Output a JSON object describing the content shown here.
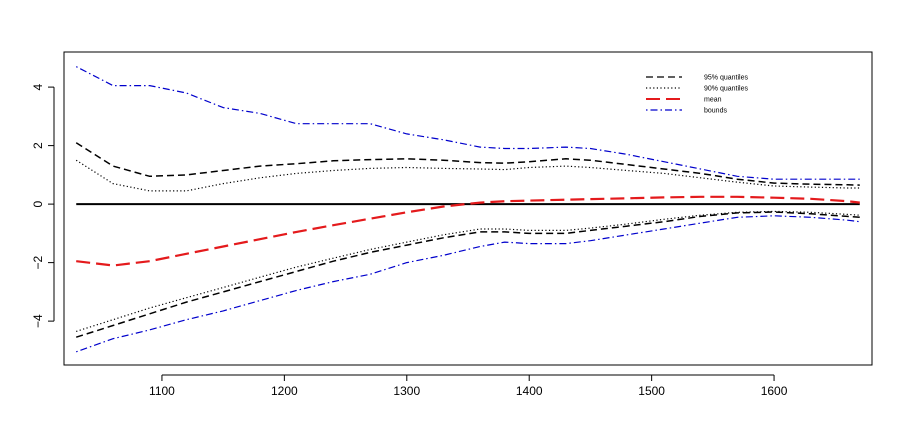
{
  "chart_data": {
    "type": "line",
    "title": "",
    "xlabel": "",
    "ylabel": "",
    "xlim": [
      1020,
      1680
    ],
    "ylim": [
      -5.5,
      5.2
    ],
    "xticks": [
      1100,
      1200,
      1300,
      1400,
      1500,
      1600
    ],
    "yticks": [
      -4,
      -2,
      0,
      2,
      4
    ],
    "grid": false,
    "legend": {
      "position": "top-right",
      "entries": [
        {
          "label": "95% quantiles",
          "color": "#000000",
          "dash": "dashed"
        },
        {
          "label": "90% quantiles",
          "color": "#000000",
          "dash": "dotted"
        },
        {
          "label": "mean",
          "color": "#e41a1c",
          "dash": "longdash"
        },
        {
          "label": "bounds",
          "color": "#0000cc",
          "dash": "dotdash"
        }
      ]
    },
    "zero_line": {
      "y": 0,
      "color": "#000000"
    },
    "series": [
      {
        "name": "95% quantiles",
        "group": "upper",
        "color": "#000000",
        "dash": "dashed",
        "width": 1.5,
        "x": [
          1030,
          1060,
          1090,
          1120,
          1150,
          1180,
          1210,
          1240,
          1270,
          1300,
          1330,
          1360,
          1380,
          1400,
          1430,
          1450,
          1480,
          1510,
          1540,
          1570,
          1600,
          1630,
          1660,
          1670
        ],
        "y": [
          2.1,
          1.3,
          0.95,
          1.0,
          1.15,
          1.3,
          1.38,
          1.48,
          1.52,
          1.55,
          1.5,
          1.42,
          1.4,
          1.45,
          1.55,
          1.5,
          1.35,
          1.2,
          1.05,
          0.85,
          0.72,
          0.68,
          0.66,
          0.65
        ]
      },
      {
        "name": "95% quantiles",
        "group": "lower",
        "color": "#000000",
        "dash": "dashed",
        "width": 1.5,
        "x": [
          1030,
          1060,
          1090,
          1120,
          1150,
          1180,
          1210,
          1240,
          1270,
          1300,
          1330,
          1360,
          1380,
          1400,
          1430,
          1450,
          1480,
          1510,
          1540,
          1570,
          1600,
          1630,
          1660,
          1670
        ],
        "y": [
          -4.55,
          -4.15,
          -3.75,
          -3.35,
          -3.0,
          -2.65,
          -2.3,
          -1.95,
          -1.65,
          -1.4,
          -1.15,
          -0.95,
          -0.95,
          -1.0,
          -1.0,
          -0.9,
          -0.75,
          -0.6,
          -0.42,
          -0.3,
          -0.27,
          -0.33,
          -0.42,
          -0.45
        ]
      },
      {
        "name": "90% quantiles",
        "group": "upper",
        "color": "#000000",
        "dash": "dotted",
        "width": 1.2,
        "x": [
          1030,
          1060,
          1090,
          1120,
          1150,
          1180,
          1210,
          1240,
          1270,
          1300,
          1330,
          1360,
          1380,
          1400,
          1430,
          1450,
          1480,
          1510,
          1540,
          1570,
          1600,
          1630,
          1660,
          1670
        ],
        "y": [
          1.5,
          0.7,
          0.45,
          0.45,
          0.7,
          0.9,
          1.05,
          1.15,
          1.22,
          1.25,
          1.22,
          1.2,
          1.18,
          1.25,
          1.3,
          1.25,
          1.15,
          1.05,
          0.9,
          0.75,
          0.62,
          0.58,
          0.55,
          0.55
        ]
      },
      {
        "name": "90% quantiles",
        "group": "lower",
        "color": "#000000",
        "dash": "dotted",
        "width": 1.2,
        "x": [
          1030,
          1060,
          1090,
          1120,
          1150,
          1180,
          1210,
          1240,
          1270,
          1300,
          1330,
          1360,
          1380,
          1400,
          1430,
          1450,
          1480,
          1510,
          1540,
          1570,
          1600,
          1630,
          1660,
          1670
        ],
        "y": [
          -4.35,
          -3.95,
          -3.55,
          -3.2,
          -2.85,
          -2.5,
          -2.15,
          -1.85,
          -1.55,
          -1.3,
          -1.05,
          -0.85,
          -0.85,
          -0.9,
          -0.9,
          -0.82,
          -0.68,
          -0.52,
          -0.38,
          -0.28,
          -0.25,
          -0.28,
          -0.35,
          -0.38
        ]
      },
      {
        "name": "mean",
        "group": "center",
        "color": "#e41a1c",
        "dash": "longdash",
        "width": 2.2,
        "x": [
          1030,
          1060,
          1090,
          1120,
          1150,
          1180,
          1210,
          1240,
          1270,
          1300,
          1330,
          1360,
          1380,
          1400,
          1430,
          1450,
          1480,
          1510,
          1540,
          1570,
          1600,
          1630,
          1660,
          1670
        ],
        "y": [
          -1.95,
          -2.1,
          -1.95,
          -1.7,
          -1.45,
          -1.2,
          -0.95,
          -0.72,
          -0.5,
          -0.28,
          -0.08,
          0.05,
          0.1,
          0.12,
          0.15,
          0.17,
          0.2,
          0.23,
          0.25,
          0.25,
          0.22,
          0.18,
          0.1,
          0.05
        ]
      },
      {
        "name": "bounds",
        "group": "upper",
        "color": "#0000cc",
        "dash": "dotdash",
        "width": 1.2,
        "x": [
          1030,
          1060,
          1090,
          1120,
          1150,
          1180,
          1210,
          1240,
          1270,
          1300,
          1330,
          1360,
          1380,
          1400,
          1430,
          1450,
          1480,
          1510,
          1540,
          1570,
          1600,
          1630,
          1660,
          1670
        ],
        "y": [
          4.7,
          4.05,
          4.05,
          3.8,
          3.3,
          3.1,
          2.75,
          2.75,
          2.75,
          2.4,
          2.2,
          1.95,
          1.9,
          1.9,
          1.95,
          1.9,
          1.7,
          1.45,
          1.2,
          0.95,
          0.85,
          0.85,
          0.85,
          0.85
        ]
      },
      {
        "name": "bounds",
        "group": "lower",
        "color": "#0000cc",
        "dash": "dotdash",
        "width": 1.2,
        "x": [
          1030,
          1060,
          1090,
          1120,
          1150,
          1180,
          1210,
          1240,
          1270,
          1300,
          1330,
          1360,
          1380,
          1400,
          1430,
          1450,
          1480,
          1510,
          1540,
          1570,
          1600,
          1630,
          1660,
          1670
        ],
        "y": [
          -5.05,
          -4.6,
          -4.3,
          -3.95,
          -3.65,
          -3.3,
          -2.95,
          -2.65,
          -2.4,
          -2.0,
          -1.75,
          -1.45,
          -1.3,
          -1.35,
          -1.35,
          -1.25,
          -1.05,
          -0.85,
          -0.65,
          -0.45,
          -0.4,
          -0.45,
          -0.55,
          -0.6
        ]
      }
    ]
  }
}
